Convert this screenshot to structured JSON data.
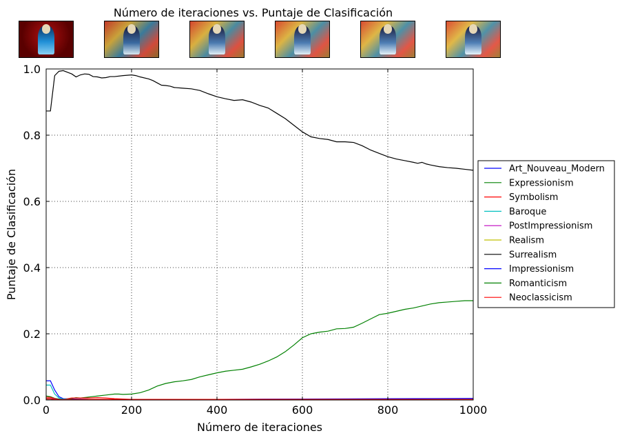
{
  "chart_data": {
    "type": "line",
    "title": "Número de iteraciones vs. Puntaje de Clasificación",
    "xlabel": "Número de iteraciones",
    "ylabel": "Puntaje de Clasificación",
    "xlim": [
      0,
      1000
    ],
    "ylim": [
      0,
      1.0
    ],
    "xticks": [
      "0",
      "200",
      "400",
      "600",
      "800",
      "1000"
    ],
    "yticks": [
      "0.0",
      "0.2",
      "0.4",
      "0.6",
      "0.8",
      "1.0"
    ],
    "grid": true,
    "legend_position": "right",
    "thumbnail_count": 6,
    "series": [
      {
        "name": "Art_Nouveau_Modern",
        "color": "#0000ff",
        "x": [
          0,
          10,
          20,
          30,
          40,
          60,
          100,
          200,
          400,
          600,
          800,
          1000
        ],
        "y": [
          0.058,
          0.058,
          0.03,
          0.01,
          0.004,
          0.003,
          0.002,
          0.002,
          0.002,
          0.003,
          0.004,
          0.005
        ]
      },
      {
        "name": "Expressionism",
        "color": "#008000",
        "x": [
          0,
          10,
          20,
          30,
          40,
          60,
          70,
          80,
          100,
          120,
          140,
          160,
          170,
          180,
          200,
          220,
          240,
          260,
          280,
          300,
          320,
          340,
          360,
          380,
          400,
          420,
          440,
          460,
          480,
          500,
          520,
          540,
          560,
          580,
          600,
          620,
          640,
          660,
          680,
          700,
          720,
          740,
          760,
          780,
          800,
          820,
          840,
          860,
          880,
          900,
          920,
          940,
          960,
          980,
          1000
        ],
        "y": [
          0.012,
          0.01,
          0.005,
          0.003,
          0.002,
          0.005,
          0.007,
          0.006,
          0.009,
          0.012,
          0.015,
          0.018,
          0.018,
          0.017,
          0.018,
          0.022,
          0.03,
          0.042,
          0.05,
          0.055,
          0.058,
          0.062,
          0.07,
          0.076,
          0.082,
          0.087,
          0.09,
          0.093,
          0.1,
          0.108,
          0.118,
          0.13,
          0.146,
          0.166,
          0.188,
          0.2,
          0.205,
          0.208,
          0.215,
          0.216,
          0.22,
          0.232,
          0.245,
          0.258,
          0.262,
          0.268,
          0.274,
          0.278,
          0.284,
          0.29,
          0.294,
          0.296,
          0.298,
          0.3,
          0.3
        ]
      },
      {
        "name": "Symbolism",
        "color": "#ff0000",
        "x": [
          0,
          10,
          20,
          30,
          40,
          60,
          100,
          120,
          140,
          160,
          180,
          200,
          300,
          500,
          800,
          1000
        ],
        "y": [
          0.008,
          0.008,
          0.004,
          0.002,
          0.002,
          0.006,
          0.006,
          0.007,
          0.006,
          0.004,
          0.003,
          0.002,
          0.002,
          0.001,
          0.001,
          0.001
        ]
      },
      {
        "name": "Baroque",
        "color": "#00bfbf",
        "x": [
          0,
          10,
          20,
          30,
          40,
          60,
          100,
          200,
          400,
          600,
          800,
          1000
        ],
        "y": [
          0.045,
          0.045,
          0.018,
          0.006,
          0.003,
          0.002,
          0.002,
          0.001,
          0.001,
          0.001,
          0.001,
          0.001
        ]
      },
      {
        "name": "PostImpressionism",
        "color": "#bf00bf",
        "x": [
          0,
          10,
          20,
          30,
          40,
          100,
          200,
          400,
          600,
          800,
          1000
        ],
        "y": [
          0.005,
          0.005,
          0.003,
          0.002,
          0.001,
          0.001,
          0.001,
          0.001,
          0.001,
          0.001,
          0.001
        ]
      },
      {
        "name": "Realism",
        "color": "#bfbf00",
        "x": [
          0,
          10,
          20,
          30,
          40,
          100,
          200,
          400,
          600,
          800,
          1000
        ],
        "y": [
          0.004,
          0.004,
          0.002,
          0.001,
          0.001,
          0.001,
          0.001,
          0.001,
          0.001,
          0.001,
          0.001
        ]
      },
      {
        "name": "Surrealism",
        "color": "#000000",
        "x": [
          0,
          10,
          20,
          30,
          40,
          50,
          60,
          70,
          80,
          90,
          100,
          110,
          120,
          130,
          140,
          150,
          160,
          180,
          200,
          210,
          220,
          240,
          250,
          260,
          270,
          280,
          290,
          300,
          320,
          340,
          360,
          380,
          400,
          420,
          440,
          460,
          480,
          500,
          520,
          540,
          560,
          580,
          600,
          620,
          640,
          660,
          680,
          700,
          720,
          740,
          760,
          780,
          800,
          820,
          840,
          860,
          870,
          880,
          890,
          900,
          920,
          940,
          960,
          980,
          1000
        ],
        "y": [
          0.873,
          0.873,
          0.98,
          0.993,
          0.995,
          0.99,
          0.985,
          0.976,
          0.982,
          0.985,
          0.984,
          0.977,
          0.976,
          0.973,
          0.974,
          0.977,
          0.977,
          0.98,
          0.982,
          0.98,
          0.976,
          0.97,
          0.965,
          0.958,
          0.951,
          0.95,
          0.948,
          0.944,
          0.942,
          0.94,
          0.935,
          0.925,
          0.916,
          0.91,
          0.905,
          0.907,
          0.9,
          0.89,
          0.882,
          0.866,
          0.85,
          0.83,
          0.81,
          0.795,
          0.79,
          0.787,
          0.78,
          0.78,
          0.778,
          0.768,
          0.755,
          0.745,
          0.735,
          0.728,
          0.723,
          0.718,
          0.715,
          0.718,
          0.713,
          0.71,
          0.705,
          0.702,
          0.7,
          0.697,
          0.694
        ]
      },
      {
        "name": "Impressionism",
        "color": "#0000ff",
        "x": [
          0,
          10,
          20,
          30,
          40,
          100,
          200,
          400,
          600,
          800,
          1000
        ],
        "y": [
          0.003,
          0.003,
          0.002,
          0.001,
          0.001,
          0.001,
          0.001,
          0.001,
          0.001,
          0.001,
          0.001
        ]
      },
      {
        "name": "Romanticism",
        "color": "#008000",
        "x": [
          0,
          10,
          20,
          30,
          40,
          100,
          200,
          400,
          600,
          800,
          1000
        ],
        "y": [
          0.003,
          0.003,
          0.002,
          0.001,
          0.001,
          0.001,
          0.001,
          0.001,
          0.001,
          0.001,
          0.001
        ]
      },
      {
        "name": "Neoclassicism",
        "color": "#ff0000",
        "x": [
          0,
          10,
          20,
          30,
          40,
          100,
          200,
          400,
          600,
          800,
          1000
        ],
        "y": [
          0.003,
          0.003,
          0.002,
          0.001,
          0.001,
          0.002,
          0.002,
          0.002,
          0.002,
          0.002,
          0.002
        ]
      }
    ]
  }
}
